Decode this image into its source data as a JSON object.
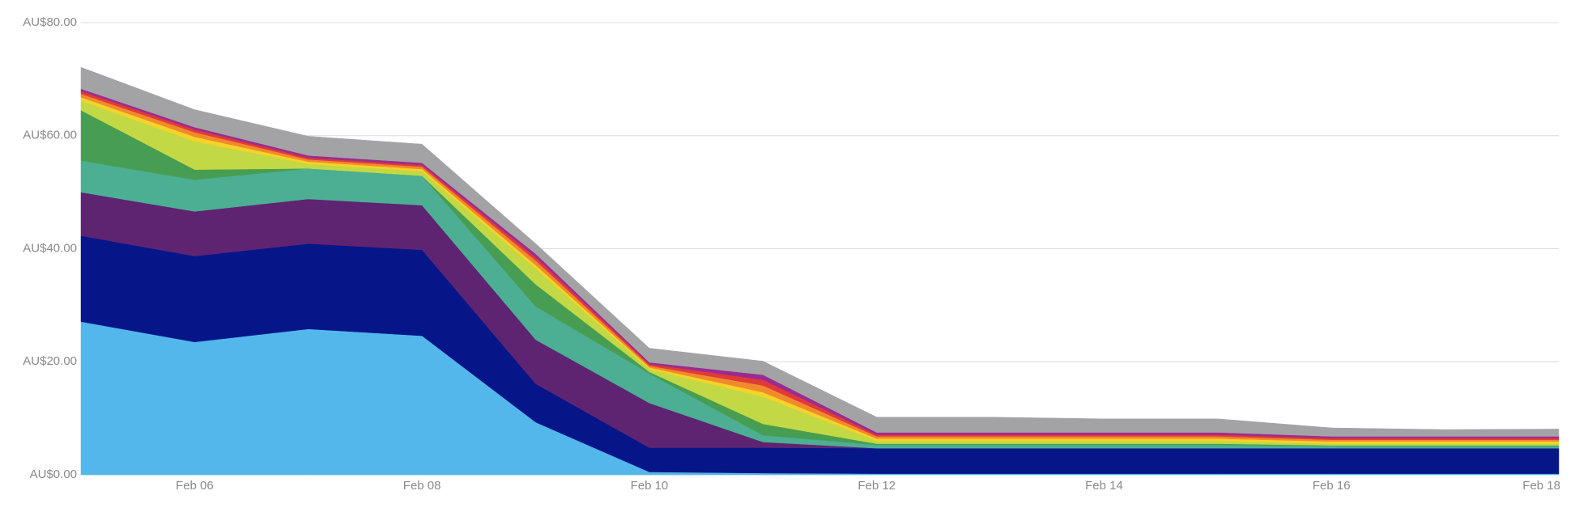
{
  "chart_data": {
    "type": "stacked-area",
    "categories": [
      null,
      "Feb 06",
      null,
      "Feb 08",
      null,
      "Feb 10",
      null,
      "Feb 12",
      null,
      "Feb 14",
      null,
      "Feb 16",
      null,
      "Feb 18"
    ],
    "ylim": [
      0,
      80
    ],
    "yticks": [
      {
        "value": 0,
        "label": "AU$0.00"
      },
      {
        "value": 20,
        "label": "AU$20.00"
      },
      {
        "value": 40,
        "label": "AU$40.00"
      },
      {
        "value": 60,
        "label": "AU$60.00"
      },
      {
        "value": 80,
        "label": "AU$80.00"
      }
    ],
    "grid": true,
    "series": [
      {
        "color": "#53b7ec",
        "values": [
          27.1,
          23.5,
          25.8,
          24.6,
          9.3,
          0.5,
          0.3,
          0.2,
          0.2,
          0.2,
          0.2,
          0.2,
          0.2,
          0.2
        ]
      },
      {
        "color": "#061689",
        "values": [
          15.2,
          15.2,
          15.1,
          15.2,
          6.8,
          4.3,
          4.5,
          4.5,
          4.5,
          4.5,
          4.5,
          4.5,
          4.5,
          4.5
        ]
      },
      {
        "color": "#5e2472",
        "values": [
          7.7,
          7.9,
          7.9,
          7.9,
          7.8,
          7.9,
          1.0,
          0,
          0,
          0,
          0,
          0,
          0,
          0
        ]
      },
      {
        "color": "#4caf93",
        "values": [
          5.6,
          5.6,
          5.4,
          5.2,
          5.9,
          5.2,
          1.2,
          0.6,
          0.6,
          0.6,
          0.6,
          0.4,
          0.4,
          0.4
        ]
      },
      {
        "color": "#479e52",
        "values": [
          8.9,
          1.8,
          0,
          0,
          3.9,
          0.3,
          2.0,
          0.2,
          0.2,
          0.2,
          0.2,
          0.1,
          0.1,
          0.1
        ]
      },
      {
        "color": "#c2d844",
        "values": [
          1.7,
          5.0,
          0.8,
          0.8,
          2.8,
          0.5,
          4.8,
          0.5,
          0.5,
          0.5,
          0.5,
          0.3,
          0.3,
          0.3
        ]
      },
      {
        "color": "#f5d328",
        "values": [
          0.6,
          0.8,
          0.4,
          0.4,
          0.6,
          0.3,
          0.8,
          0.4,
          0.4,
          0.4,
          0.4,
          0.4,
          0.4,
          0.4
        ]
      },
      {
        "color": "#f18a2d",
        "values": [
          0.6,
          0.8,
          0.4,
          0.4,
          0.8,
          0.3,
          1.2,
          0.4,
          0.4,
          0.4,
          0.4,
          0.3,
          0.3,
          0.3
        ]
      },
      {
        "color": "#e13a37",
        "values": [
          0.5,
          0.5,
          0.3,
          0.3,
          0.6,
          0.3,
          1.0,
          0.3,
          0.3,
          0.3,
          0.3,
          0.3,
          0.3,
          0.3
        ]
      },
      {
        "color": "#9c2b8f",
        "values": [
          0.4,
          0.4,
          0.4,
          0.4,
          0.6,
          0.3,
          0.9,
          0.4,
          0.4,
          0.4,
          0.4,
          0.3,
          0.3,
          0.3
        ]
      },
      {
        "color": "#a3a3a5",
        "values": [
          3.8,
          3.1,
          3.4,
          3.3,
          1.8,
          2.5,
          2.4,
          2.7,
          2.7,
          2.4,
          2.4,
          1.5,
          1.2,
          1.3
        ]
      }
    ]
  }
}
